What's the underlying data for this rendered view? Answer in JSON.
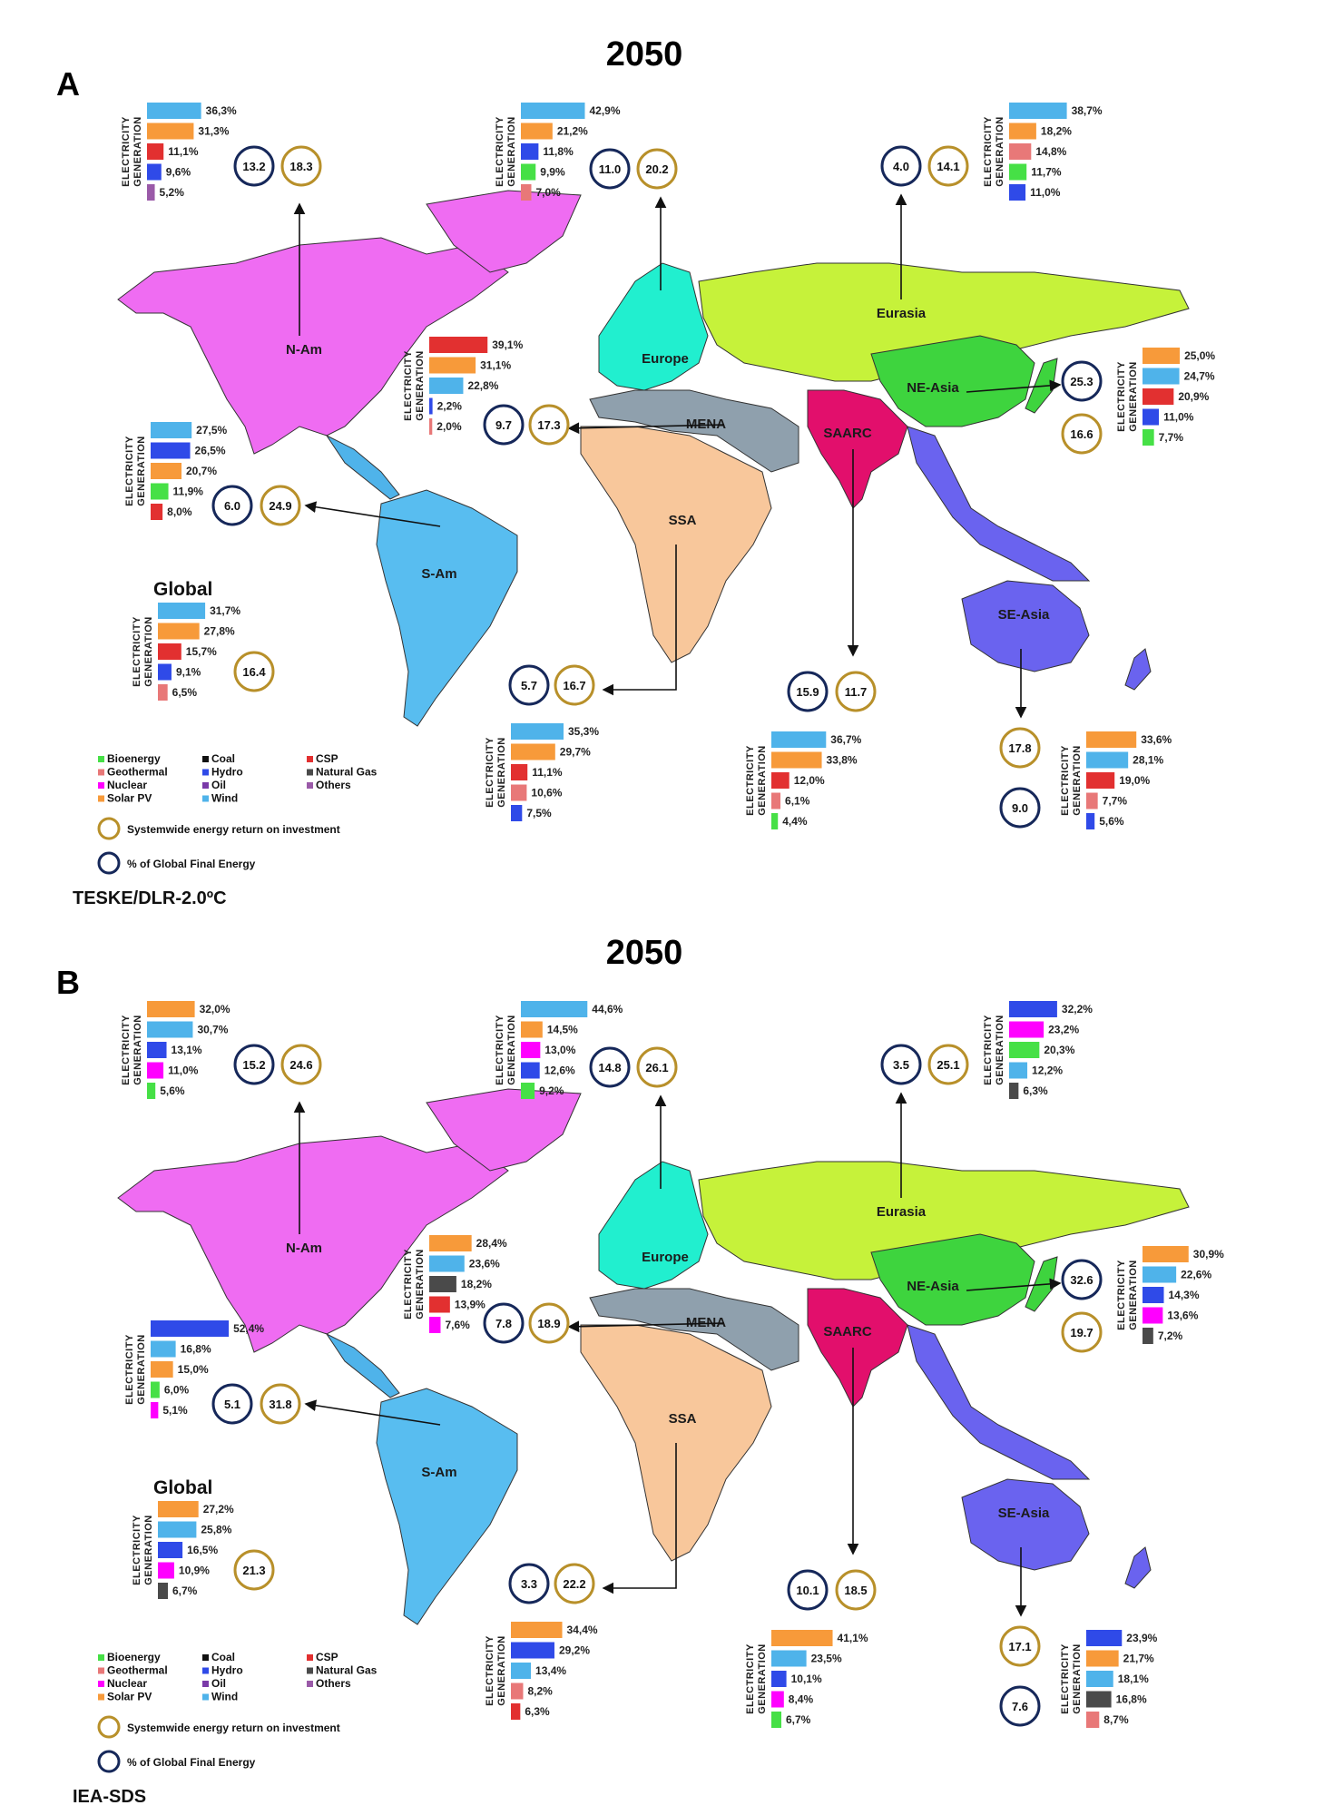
{
  "colors": {
    "Bioenergy": "#46e046",
    "Geothermal": "#e87878",
    "Nuclear": "#ff00ff",
    "Solar PV": "#f79a3a",
    "Coal": "#111111",
    "Hydro": "#2f4ae8",
    "Oil": "#7a3aa8",
    "Wind": "#4fb3ea",
    "CSP": "#e23030",
    "Natural Gas": "#4a4a4a",
    "Others": "#9a5aa8",
    "eroi_ring": "#b8902a",
    "share_ring": "#16285a"
  },
  "common": {
    "elec_line1": "ELECTRICITY",
    "elec_line2": "GENERATION",
    "global_label": "Global",
    "eroi_legend": "Systemwide energy return on investment",
    "share_legend": "% of Global Final Energy",
    "legend_items": [
      "Bioenergy",
      "Geothermal",
      "Nuclear",
      "Solar PV",
      "Coal",
      "Hydro",
      "Oil",
      "Wind",
      "CSP",
      "Natural Gas",
      "Others"
    ]
  },
  "panels": [
    {
      "letter": "A",
      "title": "2050",
      "scenario": "TESKE/DLR-2.0ºC",
      "regions": [
        {
          "name": "N-Am",
          "share": "13.2",
          "eroi": "18.3",
          "bars": [
            {
              "t": "Wind",
              "v": 36.3,
              "l": "36,3%"
            },
            {
              "t": "Solar PV",
              "v": 31.3,
              "l": "31,3%"
            },
            {
              "t": "CSP",
              "v": 11.1,
              "l": "11,1%"
            },
            {
              "t": "Hydro",
              "v": 9.6,
              "l": "9,6%"
            },
            {
              "t": "Others",
              "v": 5.2,
              "l": "5,2%"
            }
          ]
        },
        {
          "name": "Europe",
          "share": "11.0",
          "eroi": "20.2",
          "bars": [
            {
              "t": "Wind",
              "v": 42.9,
              "l": "42,9%"
            },
            {
              "t": "Solar PV",
              "v": 21.2,
              "l": "21,2%"
            },
            {
              "t": "Hydro",
              "v": 11.8,
              "l": "11,8%"
            },
            {
              "t": "Bioenergy",
              "v": 9.9,
              "l": "9,9%"
            },
            {
              "t": "Geothermal",
              "v": 7.0,
              "l": "7,0%"
            }
          ]
        },
        {
          "name": "Eurasia",
          "share": "4.0",
          "eroi": "14.1",
          "bars": [
            {
              "t": "Wind",
              "v": 38.7,
              "l": "38,7%"
            },
            {
              "t": "Solar PV",
              "v": 18.2,
              "l": "18,2%"
            },
            {
              "t": "Geothermal",
              "v": 14.8,
              "l": "14,8%"
            },
            {
              "t": "Bioenergy",
              "v": 11.7,
              "l": "11,7%"
            },
            {
              "t": "Hydro",
              "v": 11.0,
              "l": "11,0%"
            }
          ]
        },
        {
          "name": "MENA",
          "share": "9.7",
          "eroi": "17.3",
          "bars": [
            {
              "t": "CSP",
              "v": 39.1,
              "l": "39,1%"
            },
            {
              "t": "Solar PV",
              "v": 31.1,
              "l": "31,1%"
            },
            {
              "t": "Wind",
              "v": 22.8,
              "l": "22,8%"
            },
            {
              "t": "Hydro",
              "v": 2.2,
              "l": "2,2%"
            },
            {
              "t": "Geothermal",
              "v": 2.0,
              "l": "2,0%"
            }
          ]
        },
        {
          "name": "NE-Asia",
          "share": "25.3",
          "eroi": "16.6",
          "bars": [
            {
              "t": "Solar PV",
              "v": 25.0,
              "l": "25,0%"
            },
            {
              "t": "Wind",
              "v": 24.7,
              "l": "24,7%"
            },
            {
              "t": "CSP",
              "v": 20.9,
              "l": "20,9%"
            },
            {
              "t": "Hydro",
              "v": 11.0,
              "l": "11,0%"
            },
            {
              "t": "Bioenergy",
              "v": 7.7,
              "l": "7,7%"
            }
          ]
        },
        {
          "name": "S-Am",
          "share": "6.0",
          "eroi": "24.9",
          "bars": [
            {
              "t": "Wind",
              "v": 27.5,
              "l": "27,5%"
            },
            {
              "t": "Hydro",
              "v": 26.5,
              "l": "26,5%"
            },
            {
              "t": "Solar PV",
              "v": 20.7,
              "l": "20,7%"
            },
            {
              "t": "Bioenergy",
              "v": 11.9,
              "l": "11,9%"
            },
            {
              "t": "CSP",
              "v": 8.0,
              "l": "8,0%"
            }
          ]
        },
        {
          "name": "Global",
          "share": "",
          "eroi": "16.4",
          "bars": [
            {
              "t": "Wind",
              "v": 31.7,
              "l": "31,7%"
            },
            {
              "t": "Solar PV",
              "v": 27.8,
              "l": "27,8%"
            },
            {
              "t": "CSP",
              "v": 15.7,
              "l": "15,7%"
            },
            {
              "t": "Hydro",
              "v": 9.1,
              "l": "9,1%"
            },
            {
              "t": "Geothermal",
              "v": 6.5,
              "l": "6,5%"
            }
          ]
        },
        {
          "name": "SSA",
          "share": "5.7",
          "eroi": "16.7",
          "bars": [
            {
              "t": "Wind",
              "v": 35.3,
              "l": "35,3%"
            },
            {
              "t": "Solar PV",
              "v": 29.7,
              "l": "29,7%"
            },
            {
              "t": "CSP",
              "v": 11.1,
              "l": "11,1%"
            },
            {
              "t": "Geothermal",
              "v": 10.6,
              "l": "10,6%"
            },
            {
              "t": "Hydro",
              "v": 7.5,
              "l": "7,5%"
            }
          ]
        },
        {
          "name": "SAARC",
          "share": "15.9",
          "eroi": "11.7",
          "bars": [
            {
              "t": "Wind",
              "v": 36.7,
              "l": "36,7%"
            },
            {
              "t": "Solar PV",
              "v": 33.8,
              "l": "33,8%"
            },
            {
              "t": "CSP",
              "v": 12.0,
              "l": "12,0%"
            },
            {
              "t": "Geothermal",
              "v": 6.1,
              "l": "6,1%"
            },
            {
              "t": "Bioenergy",
              "v": 4.4,
              "l": "4,4%"
            }
          ]
        },
        {
          "name": "SE-Asia",
          "share": "9.0",
          "eroi": "17.8",
          "bars": [
            {
              "t": "Solar PV",
              "v": 33.6,
              "l": "33,6%"
            },
            {
              "t": "Wind",
              "v": 28.1,
              "l": "28,1%"
            },
            {
              "t": "CSP",
              "v": 19.0,
              "l": "19,0%"
            },
            {
              "t": "Geothermal",
              "v": 7.7,
              "l": "7,7%"
            },
            {
              "t": "Hydro",
              "v": 5.6,
              "l": "5,6%"
            }
          ]
        }
      ]
    },
    {
      "letter": "B",
      "title": "2050",
      "scenario": "IEA-SDS",
      "regions": [
        {
          "name": "N-Am",
          "share": "15.2",
          "eroi": "24.6",
          "bars": [
            {
              "t": "Solar PV",
              "v": 32.0,
              "l": "32,0%"
            },
            {
              "t": "Wind",
              "v": 30.7,
              "l": "30,7%"
            },
            {
              "t": "Hydro",
              "v": 13.1,
              "l": "13,1%"
            },
            {
              "t": "Nuclear",
              "v": 11.0,
              "l": "11,0%"
            },
            {
              "t": "Bioenergy",
              "v": 5.6,
              "l": "5,6%"
            }
          ]
        },
        {
          "name": "Europe",
          "share": "14.8",
          "eroi": "26.1",
          "bars": [
            {
              "t": "Wind",
              "v": 44.6,
              "l": "44,6%"
            },
            {
              "t": "Solar PV",
              "v": 14.5,
              "l": "14,5%"
            },
            {
              "t": "Nuclear",
              "v": 13.0,
              "l": "13,0%"
            },
            {
              "t": "Hydro",
              "v": 12.6,
              "l": "12,6%"
            },
            {
              "t": "Bioenergy",
              "v": 9.2,
              "l": "9,2%"
            }
          ]
        },
        {
          "name": "Eurasia",
          "share": "3.5",
          "eroi": "25.1",
          "bars": [
            {
              "t": "Hydro",
              "v": 32.2,
              "l": "32,2%"
            },
            {
              "t": "Nuclear",
              "v": 23.2,
              "l": "23,2%"
            },
            {
              "t": "Bioenergy",
              "v": 20.3,
              "l": "20,3%"
            },
            {
              "t": "Wind",
              "v": 12.2,
              "l": "12,2%"
            },
            {
              "t": "Natural Gas",
              "v": 6.3,
              "l": "6,3%"
            }
          ]
        },
        {
          "name": "MENA",
          "share": "7.8",
          "eroi": "18.9",
          "bars": [
            {
              "t": "Solar PV",
              "v": 28.4,
              "l": "28,4%"
            },
            {
              "t": "Wind",
              "v": 23.6,
              "l": "23,6%"
            },
            {
              "t": "Natural Gas",
              "v": 18.2,
              "l": "18,2%"
            },
            {
              "t": "CSP",
              "v": 13.9,
              "l": "13,9%"
            },
            {
              "t": "Nuclear",
              "v": 7.6,
              "l": "7,6%"
            }
          ]
        },
        {
          "name": "NE-Asia",
          "share": "32.6",
          "eroi": "19.7",
          "bars": [
            {
              "t": "Solar PV",
              "v": 30.9,
              "l": "30,9%"
            },
            {
              "t": "Wind",
              "v": 22.6,
              "l": "22,6%"
            },
            {
              "t": "Hydro",
              "v": 14.3,
              "l": "14,3%"
            },
            {
              "t": "Nuclear",
              "v": 13.6,
              "l": "13,6%"
            },
            {
              "t": "Natural Gas",
              "v": 7.2,
              "l": "7,2%"
            }
          ]
        },
        {
          "name": "S-Am",
          "share": "5.1",
          "eroi": "31.8",
          "bars": [
            {
              "t": "Hydro",
              "v": 52.4,
              "l": "52,4%"
            },
            {
              "t": "Wind",
              "v": 16.8,
              "l": "16,8%"
            },
            {
              "t": "Solar PV",
              "v": 15.0,
              "l": "15,0%"
            },
            {
              "t": "Bioenergy",
              "v": 6.0,
              "l": "6,0%"
            },
            {
              "t": "Nuclear",
              "v": 5.1,
              "l": "5,1%"
            }
          ]
        },
        {
          "name": "Global",
          "share": "",
          "eroi": "21.3",
          "bars": [
            {
              "t": "Solar PV",
              "v": 27.2,
              "l": "27,2%"
            },
            {
              "t": "Wind",
              "v": 25.8,
              "l": "25,8%"
            },
            {
              "t": "Hydro",
              "v": 16.5,
              "l": "16,5%"
            },
            {
              "t": "Nuclear",
              "v": 10.9,
              "l": "10,9%"
            },
            {
              "t": "Natural Gas",
              "v": 6.7,
              "l": "6,7%"
            }
          ]
        },
        {
          "name": "SSA",
          "share": "3.3",
          "eroi": "22.2",
          "bars": [
            {
              "t": "Solar PV",
              "v": 34.4,
              "l": "34,4%"
            },
            {
              "t": "Hydro",
              "v": 29.2,
              "l": "29,2%"
            },
            {
              "t": "Wind",
              "v": 13.4,
              "l": "13,4%"
            },
            {
              "t": "Geothermal",
              "v": 8.2,
              "l": "8,2%"
            },
            {
              "t": "CSP",
              "v": 6.3,
              "l": "6,3%"
            }
          ]
        },
        {
          "name": "SAARC",
          "share": "10.1",
          "eroi": "18.5",
          "bars": [
            {
              "t": "Solar PV",
              "v": 41.1,
              "l": "41,1%"
            },
            {
              "t": "Wind",
              "v": 23.5,
              "l": "23,5%"
            },
            {
              "t": "Hydro",
              "v": 10.1,
              "l": "10,1%"
            },
            {
              "t": "Nuclear",
              "v": 8.4,
              "l": "8,4%"
            },
            {
              "t": "Bioenergy",
              "v": 6.7,
              "l": "6,7%"
            }
          ]
        },
        {
          "name": "SE-Asia",
          "share": "7.6",
          "eroi": "17.1",
          "bars": [
            {
              "t": "Hydro",
              "v": 23.9,
              "l": "23,9%"
            },
            {
              "t": "Solar PV",
              "v": 21.7,
              "l": "21,7%"
            },
            {
              "t": "Wind",
              "v": 18.1,
              "l": "18,1%"
            },
            {
              "t": "Natural Gas",
              "v": 16.8,
              "l": "16,8%"
            },
            {
              "t": "Geothermal",
              "v": 8.7,
              "l": "8,7%"
            }
          ]
        }
      ]
    }
  ]
}
